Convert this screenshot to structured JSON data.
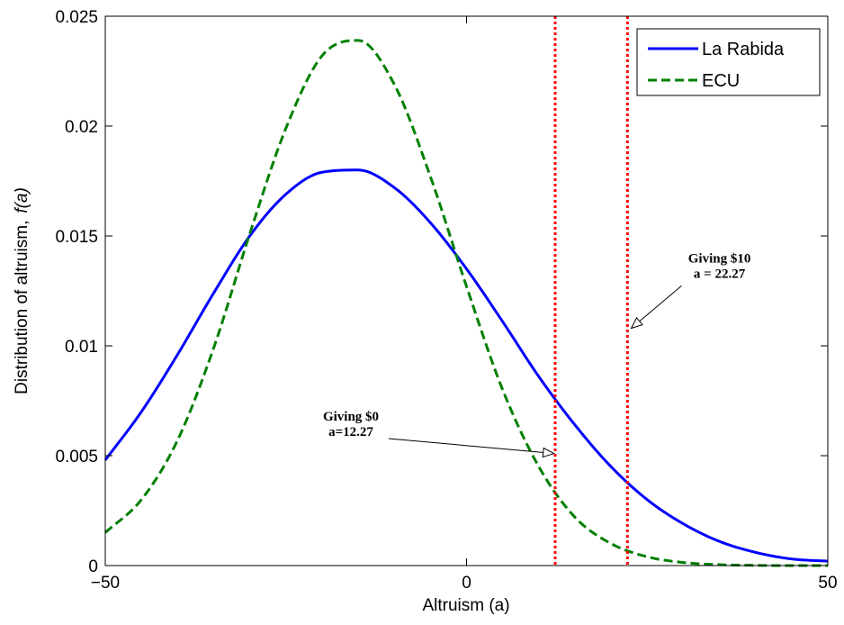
{
  "chart_data": {
    "type": "line",
    "xlabel": "Altruism (a)",
    "ylabel": "Distribution of altruism,",
    "ylabel_italic": "f(a)",
    "xlim": [
      -50,
      50
    ],
    "ylim": [
      0,
      0.025
    ],
    "xticks": [
      -50,
      0,
      50
    ],
    "xtick_labels": [
      "−50",
      "0",
      "50"
    ],
    "yticks": [
      0,
      0.005,
      0.01,
      0.015,
      0.02,
      0.025
    ],
    "ytick_labels": [
      "0",
      "0.005",
      "0.01",
      "0.015",
      "0.02",
      "0.025"
    ],
    "grid": false,
    "legend_position": "top-right",
    "series": [
      {
        "name": "La Rabida",
        "color": "#0000ff",
        "style": "solid",
        "x": [
          -50,
          -45,
          -40,
          -35,
          -30,
          -25,
          -20,
          -15,
          -10,
          -5,
          0,
          5,
          10,
          15,
          20,
          25,
          30,
          35,
          40,
          45,
          50
        ],
        "y": [
          0.0048,
          0.007,
          0.0096,
          0.0124,
          0.015,
          0.0169,
          0.0179,
          0.018,
          0.0172,
          0.0156,
          0.0135,
          0.0111,
          0.0086,
          0.0064,
          0.0045,
          0.003,
          0.0019,
          0.0011,
          0.0006,
          0.0003,
          0.0002
        ]
      },
      {
        "name": "ECU",
        "color": "#008000",
        "style": "dashed",
        "x": [
          -50,
          -45,
          -40,
          -35,
          -30,
          -25,
          -20,
          -15,
          -10,
          -5,
          0,
          5,
          10,
          15,
          20,
          25,
          30,
          35,
          40,
          45,
          50
        ],
        "y": [
          0.0015,
          0.003,
          0.0057,
          0.0099,
          0.0151,
          0.0199,
          0.0232,
          0.0239,
          0.0219,
          0.0177,
          0.0127,
          0.008,
          0.0045,
          0.0022,
          0.001,
          0.0004,
          0.00014,
          4e-05,
          1e-05,
          0.0,
          0.0
        ]
      }
    ],
    "vlines": [
      {
        "x": 12.27,
        "color": "#ff0000",
        "style": "dotted"
      },
      {
        "x": 22.27,
        "color": "#ff0000",
        "style": "dotted"
      }
    ],
    "annotations": [
      {
        "lines": [
          "Giving $0",
          "a=12.27"
        ],
        "text_x": -16,
        "text_y": 0.0066,
        "arrow_to_x": 12.1,
        "arrow_to_y": 0.0051
      },
      {
        "lines": [
          "Giving $10",
          "a = 22.27"
        ],
        "text_x": 35,
        "text_y": 0.0138,
        "arrow_to_x": 22.8,
        "arrow_to_y": 0.0108
      }
    ]
  }
}
